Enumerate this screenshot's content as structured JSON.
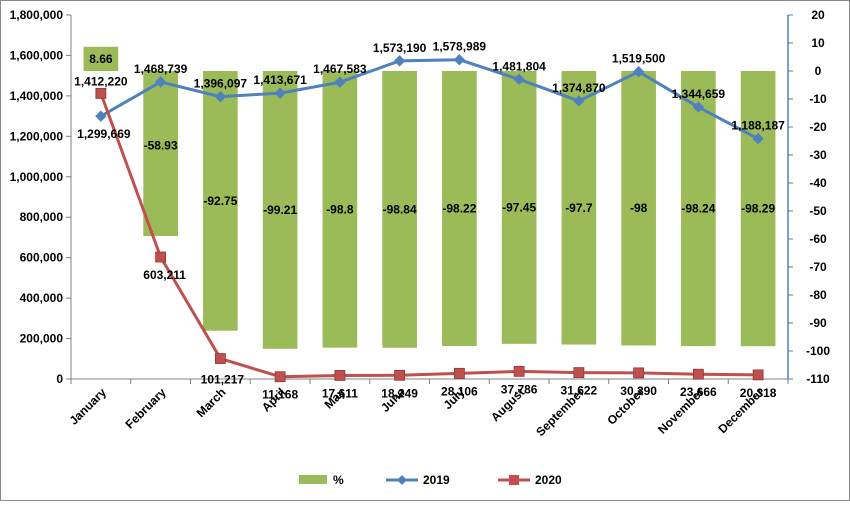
{
  "chart_data": {
    "type": "bar",
    "categories": [
      "January",
      "February",
      "March",
      "April",
      "May",
      "June",
      "July",
      "August",
      "September",
      "October",
      "November",
      "December"
    ],
    "series": [
      {
        "name": "%",
        "type": "bar",
        "axis": "right",
        "color": "#9bbb59",
        "values": [
          8.66,
          -58.93,
          -92.75,
          -99.21,
          -98.8,
          -98.84,
          -98.22,
          -97.45,
          -97.7,
          -98,
          -98.24,
          -98.29
        ],
        "labels": [
          "8.66",
          "-58.93",
          "-92.75",
          "-99.21",
          "-98.8",
          "-98.84",
          "-98.22",
          "-97.45",
          "-97.7",
          "-98",
          "-98.24",
          "-98.29"
        ]
      },
      {
        "name": "2019",
        "type": "line",
        "axis": "left",
        "color": "#4f81bd",
        "marker": "diamond",
        "values": [
          1299669,
          1468739,
          1396097,
          1413671,
          1467583,
          1573190,
          1578989,
          1481804,
          1374870,
          1519500,
          1344659,
          1188187
        ],
        "labels": [
          "1,299,669",
          "1,468,739",
          "1,396,097",
          "1,413,671",
          "1,467,583",
          "1,573,190",
          "1,578,989",
          "1,481,804",
          "1,374,870",
          "1,519,500",
          "1,344,659",
          "1,188,187"
        ]
      },
      {
        "name": "2020",
        "type": "line",
        "axis": "left",
        "color": "#c0504d",
        "marker": "square",
        "values": [
          1412220,
          603211,
          101217,
          11168,
          17611,
          18249,
          28106,
          37786,
          31622,
          30390,
          23666,
          20318
        ],
        "labels": [
          "1,412,220",
          "603,211",
          "101,217",
          "11,168",
          "17,611",
          "18,249",
          "28,106",
          "37,786",
          "31,622",
          "30,390",
          "23,666",
          "20,318"
        ]
      }
    ],
    "y_left": {
      "min": 0,
      "max": 1800000,
      "step": 200000,
      "tick_labels": [
        "0",
        "200,000",
        "400,000",
        "600,000",
        "800,000",
        "1,000,000",
        "1,200,000",
        "1,400,000",
        "1,600,000",
        "1,800,000"
      ]
    },
    "y_right": {
      "min": -110,
      "max": 20,
      "step": 10,
      "tick_labels": [
        "-110",
        "-100",
        "-90",
        "-80",
        "-70",
        "-60",
        "-50",
        "-40",
        "-30",
        "-20",
        "-10",
        "0",
        "10",
        "20"
      ]
    },
    "axis_color_right": "#4f81bd",
    "legend": {
      "position": "bottom",
      "items": [
        "%",
        "2019",
        "2020"
      ]
    },
    "title": "",
    "xlabel": "",
    "ylabel": ""
  }
}
